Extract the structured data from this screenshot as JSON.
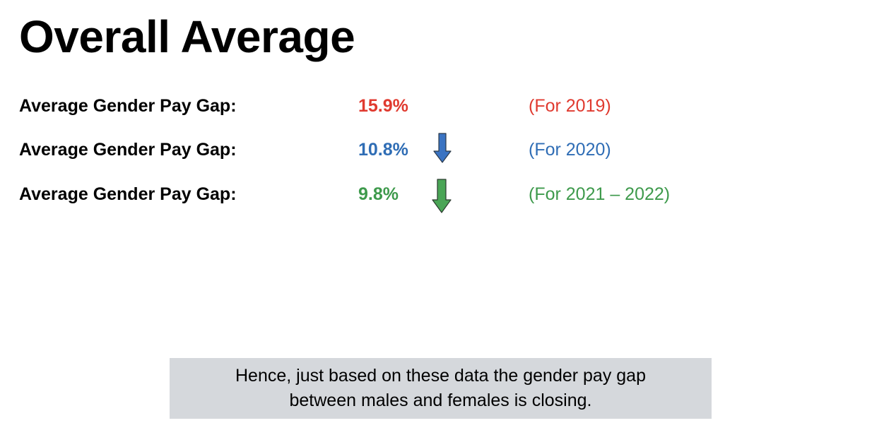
{
  "title": "Overall Average",
  "rows": [
    {
      "label": "Average Gender Pay Gap:",
      "value": "15.9%",
      "period": "(For 2019)",
      "color": "#e03a2f",
      "arrow": null
    },
    {
      "label": "Average Gender Pay Gap:",
      "value": "10.8%",
      "period": "(For 2020)",
      "color": "#2f6db5",
      "arrow": "down-arrow-icon",
      "arrow_color": "#3a73c2"
    },
    {
      "label": "Average Gender Pay Gap:",
      "value": "9.8%",
      "period": "(For 2021 – 2022)",
      "color": "#3e9a4c",
      "arrow": "down-arrow-icon",
      "arrow_color": "#4aa556"
    }
  ],
  "conclusion": {
    "line1": "Hence, just based on these data the gender pay gap",
    "line2": "between males and females is closing.",
    "background": "#d5d8dc"
  }
}
